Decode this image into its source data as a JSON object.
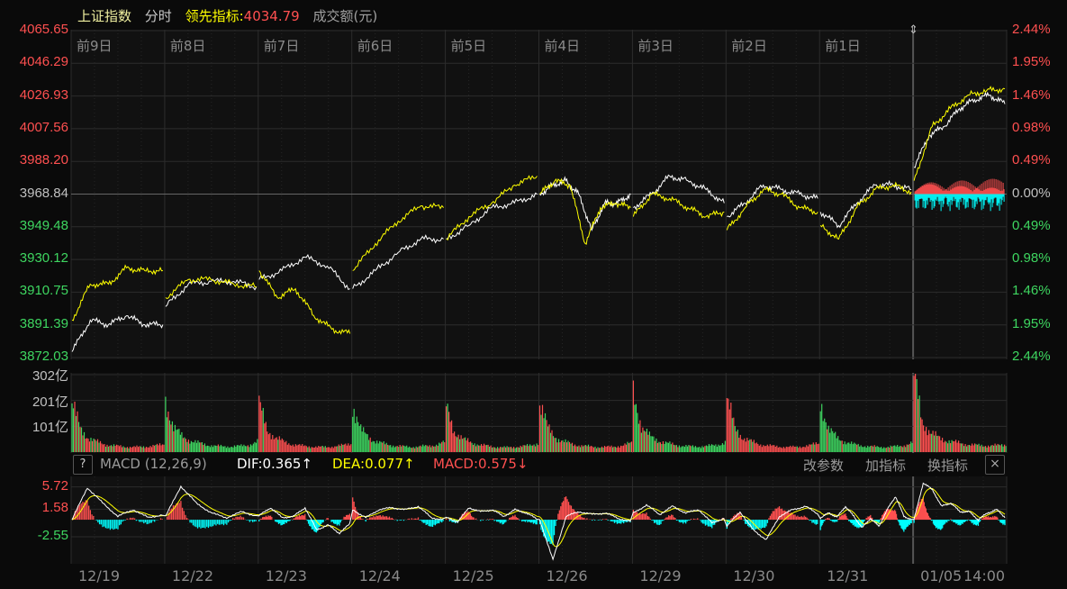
{
  "header": {
    "index_name": "上证指数",
    "mode": "分时",
    "lead_label": "领先指标:",
    "lead_value": "4034.79",
    "unit_label": "成交额(元)"
  },
  "colors": {
    "up": "#ff5050",
    "down": "#3ed660",
    "neg_hist": "#00ffff",
    "index_line": "#ffffff",
    "lead_line": "#ffff00",
    "grid": "#2c2c2c"
  },
  "day_labels": [
    "前9日",
    "前8日",
    "前7日",
    "前6日",
    "前5日",
    "前4日",
    "前3日",
    "前2日",
    "前1日"
  ],
  "date_labels": [
    "12/19",
    "12/22",
    "12/23",
    "12/24",
    "12/25",
    "12/26",
    "12/29",
    "12/30",
    "12/31",
    "01/05",
    "14:00"
  ],
  "macd_header": {
    "help": "?",
    "name": "MACD (12,26,9)",
    "dif": "DIF:0.365↑",
    "dea": "DEA:0.077↑",
    "macd": "MACD:0.575↓",
    "edit_params": "改参数",
    "add_indicator": "加指标",
    "switch_indicator": "换指标",
    "close": "×"
  },
  "chart_data": [
    {
      "type": "line",
      "panel": "price",
      "prev_close": 3968.84,
      "ylim": [
        3872.03,
        4065.65
      ],
      "y_ticks_left": [
        "4065.65",
        "4046.29",
        "4026.93",
        "4007.56",
        "3988.20",
        "3968.84",
        "3949.48",
        "3930.12",
        "3910.75",
        "3891.39",
        "3872.03"
      ],
      "y_ticks_right": [
        "2.44%",
        "1.95%",
        "1.46%",
        "0.98%",
        "0.49%",
        "0.00%",
        "0.49%",
        "0.98%",
        "1.46%",
        "1.95%",
        "2.44%"
      ],
      "series": [
        {
          "key": "index",
          "days": [
            [
              3875.5,
              3894.2,
              3891.5,
              3896.8,
              3891.5,
              3891.5
            ],
            [
              3902.2,
              3915.5,
              3917.1,
              3917.1,
              3913.9
            ],
            [
              3918.2,
              3923.5,
              3931.5,
              3926.2,
              3912.8
            ],
            [
              3912.8,
              3923.5,
              3934.2,
              3942.2,
              3942.2
            ],
            [
              3942.2,
              3950.2,
              3960.8,
              3963.5,
              3968.8
            ],
            [
              3968.8,
              3974.2,
              3976.8,
              3968.8,
              3947.5,
              3963.5,
              3963.5,
              3968.8
            ],
            [
              3960.8,
              3968.8,
              3979.5,
              3976.8,
              3971.5,
              3963.5
            ],
            [
              3955.5,
              3963.5,
              3974.2,
              3971.5,
              3968.8,
              3966.2
            ],
            [
              3958.2,
              3950.2,
              3963.5,
              3974.2,
              3974.2,
              3971.5
            ],
            [
              3984.8,
              4003.5,
              4008.8,
              4019.5,
              4024.8,
              4027.5,
              4022.2
            ]
          ]
        },
        {
          "key": "lead",
          "days": [
            [
              3894.2,
              3915.5,
              3915.5,
              3925.1,
              3923.5,
              3923.5
            ],
            [
              3907.5,
              3918.2,
              3918.2,
              3915.5,
              3913.9
            ],
            [
              3923.5,
              3907.5,
              3912.8,
              3897.0,
              3888.8,
              3886.2
            ],
            [
              3923.5,
              3939.5,
              3952.8,
              3961.9,
              3960.8
            ],
            [
              3942.2,
              3955.5,
              3963.5,
              3974.2,
              3979.5
            ],
            [
              3968.8,
              3976.8,
              3974.2,
              3939.5,
              3960.8,
              3963.5,
              3960.8
            ],
            [
              3955.5,
              3968.8,
              3966.2,
              3960.8,
              3955.5,
              3958.2
            ],
            [
              3947.5,
              3960.8,
              3971.5,
              3968.8,
              3960.8,
              3958.2
            ],
            [
              3950.2,
              3942.2,
              3960.8,
              3971.5,
              3974.2,
              3970.2
            ],
            [
              3976.8,
              4008.8,
              4019.5,
              4027.5,
              4030.2,
              4031.2
            ]
          ]
        }
      ]
    },
    {
      "type": "bar",
      "panel": "turnover",
      "unit": "亿",
      "ylim": [
        0,
        302
      ],
      "y_ticks": [
        "302亿",
        "201亿",
        "101亿"
      ],
      "days": [
        [
          190,
          90,
          55,
          40,
          30,
          25,
          22,
          20,
          20,
          22,
          25,
          30
        ],
        [
          200,
          95,
          60,
          45,
          35,
          28,
          24,
          22,
          22,
          24,
          28,
          40
        ],
        [
          185,
          85,
          55,
          40,
          30,
          25,
          22,
          20,
          20,
          22,
          26,
          35
        ],
        [
          185,
          85,
          55,
          40,
          30,
          25,
          22,
          20,
          22,
          24,
          28,
          38
        ],
        [
          175,
          80,
          50,
          38,
          28,
          24,
          20,
          18,
          20,
          22,
          26,
          35
        ],
        [
          195,
          90,
          55,
          40,
          30,
          25,
          22,
          20,
          20,
          22,
          26,
          36
        ],
        [
          230,
          100,
          60,
          45,
          35,
          28,
          24,
          22,
          22,
          24,
          28,
          38
        ],
        [
          205,
          90,
          55,
          40,
          30,
          25,
          22,
          20,
          20,
          22,
          26,
          36
        ],
        [
          200,
          88,
          55,
          40,
          30,
          25,
          22,
          20,
          20,
          22,
          26,
          36
        ],
        [
          290,
          120,
          75,
          55,
          45,
          38,
          32,
          28,
          26,
          25,
          26,
          30
        ]
      ]
    },
    {
      "type": "line",
      "panel": "macd",
      "ylim": [
        -6.45,
        6.2
      ],
      "y_ticks": [
        "5.72",
        "1.58",
        "-2.55"
      ],
      "dif_days": [
        [
          0,
          4.8,
          2.5,
          0.5,
          1.5,
          0.3,
          0.8
        ],
        [
          0.5,
          5.0,
          2.5,
          1.0,
          0.3,
          1.2,
          0.5
        ],
        [
          0.6,
          1.8,
          0.3,
          0.5,
          1.8,
          -1.5,
          -0.8,
          -2.0,
          -0.5
        ],
        [
          1.5,
          0.3,
          1.5,
          1.8,
          1.5,
          2.0,
          0.3,
          0.0
        ],
        [
          0.3,
          -0.3,
          1.8,
          1.2,
          1.5,
          0.5,
          1.5,
          1.0,
          0
        ],
        [
          0,
          -6.0,
          0.5,
          1.2,
          0.8,
          1.0,
          0.2,
          -0.3
        ],
        [
          1.0,
          2.2,
          0.8,
          2.0,
          1.0,
          1.5,
          -0.5,
          0.3
        ],
        [
          -1.0,
          1.2,
          -1.5,
          -3.0,
          0.5,
          1.5,
          2.0,
          0.8
        ],
        [
          0.3,
          1.0,
          0.4,
          2.0,
          0.5,
          -1.2,
          0.2,
          -1.0,
          1.5,
          3.5,
          0.5,
          0
        ],
        [
          0,
          5.5,
          4.5,
          2.0,
          2.5,
          1.2,
          1.2,
          0.0,
          1.0,
          1.5,
          0.3
        ]
      ]
    }
  ]
}
